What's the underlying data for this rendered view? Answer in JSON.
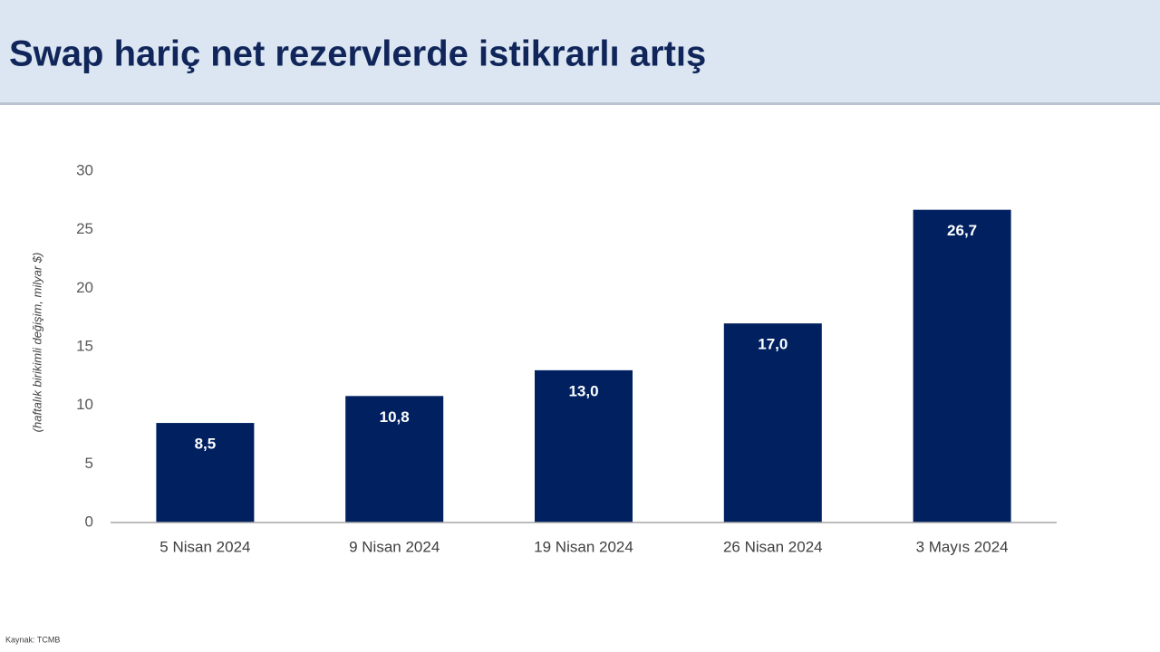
{
  "chart_data": {
    "type": "bar",
    "title": "Swap hariç net rezervlerde istikrarlı artış",
    "y_label": "(haftalık birikimli değişim, milyar $)",
    "categories": [
      "5 Nisan 2024",
      "9 Nisan 2024",
      "19 Nisan 2024",
      "26 Nisan 2024",
      "3 Mayıs 2024"
    ],
    "values": [
      8.5,
      10.8,
      13.0,
      17.0,
      26.7
    ],
    "value_labels": [
      "8,5",
      "10,8",
      "13,0",
      "17,0",
      "26,7"
    ],
    "color": "#002060",
    "ylim": [
      0,
      30
    ],
    "yticks": [
      0,
      5,
      10,
      15,
      20,
      25,
      30
    ],
    "grid": false,
    "source": "Kaynak: TCMB"
  }
}
